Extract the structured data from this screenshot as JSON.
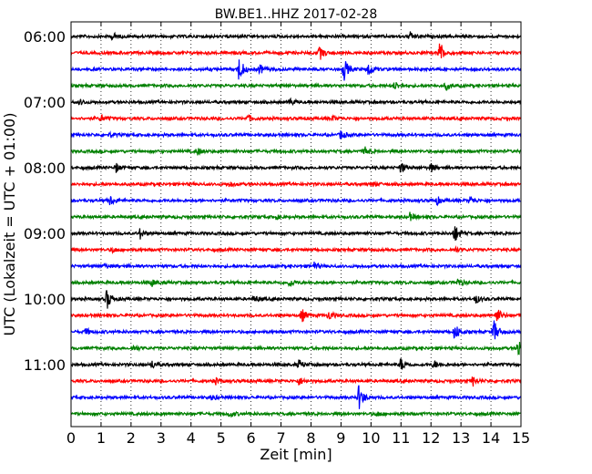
{
  "chart_data": {
    "type": "line",
    "title": "BW.BE1..HHZ 2017-02-28",
    "xlabel": "Zeit  [min]",
    "ylabel": "UTC (Lokalzeit = UTC + 01:00)",
    "xlim": [
      0,
      15
    ],
    "x_ticks": [
      "0",
      "1",
      "2",
      "3",
      "4",
      "5",
      "6",
      "7",
      "8",
      "9",
      "10",
      "11",
      "12",
      "13",
      "14",
      "15"
    ],
    "y_tick_labels": [
      "06:00",
      "07:00",
      "08:00",
      "09:00",
      "10:00",
      "11:00"
    ],
    "grid": "vertical dotted",
    "trace_minutes": 15,
    "color_cycle": [
      "#000000",
      "#ff0000",
      "#0000ff",
      "#008000"
    ],
    "series": [
      {
        "start": "06:00",
        "events": [
          [
            1.4,
            0.25
          ],
          [
            11.3,
            0.3
          ]
        ]
      },
      {
        "start": "06:15",
        "events": [
          [
            8.3,
            0.5
          ],
          [
            12.3,
            0.9
          ]
        ]
      },
      {
        "start": "06:30",
        "events": [
          [
            5.6,
            1.0
          ],
          [
            6.3,
            0.35
          ],
          [
            9.1,
            0.9
          ],
          [
            9.9,
            0.6
          ]
        ]
      },
      {
        "start": "06:45",
        "events": [
          [
            10.8,
            0.3
          ],
          [
            12.5,
            0.3
          ]
        ]
      },
      {
        "start": "07:00",
        "events": [
          [
            0.3,
            0.2
          ],
          [
            7.3,
            0.25
          ]
        ]
      },
      {
        "start": "07:15",
        "events": [
          [
            1.0,
            0.25
          ],
          [
            5.9,
            0.25
          ],
          [
            8.7,
            0.2
          ]
        ]
      },
      {
        "start": "07:30",
        "events": [
          [
            1.3,
            0.15
          ],
          [
            9.0,
            0.35
          ]
        ]
      },
      {
        "start": "07:45",
        "events": [
          [
            4.2,
            0.3
          ],
          [
            9.8,
            0.3
          ]
        ]
      },
      {
        "start": "08:00",
        "events": [
          [
            1.5,
            0.35
          ],
          [
            11.0,
            0.4
          ],
          [
            12.0,
            0.3
          ]
        ]
      },
      {
        "start": "08:15",
        "events": [
          [
            5.3,
            0.2
          ],
          [
            10.1,
            0.2
          ]
        ]
      },
      {
        "start": "08:30",
        "events": [
          [
            1.3,
            0.4
          ],
          [
            12.2,
            0.3
          ],
          [
            13.3,
            0.3
          ]
        ]
      },
      {
        "start": "08:45",
        "events": [
          [
            6.8,
            0.2
          ],
          [
            11.3,
            0.3
          ]
        ]
      },
      {
        "start": "09:00",
        "events": [
          [
            2.3,
            0.4
          ],
          [
            12.8,
            0.7
          ]
        ]
      },
      {
        "start": "09:15",
        "events": [
          [
            1.4,
            0.2
          ],
          [
            12.8,
            0.2
          ]
        ]
      },
      {
        "start": "09:30",
        "events": [
          [
            1.1,
            0.2
          ],
          [
            8.1,
            0.3
          ]
        ]
      },
      {
        "start": "09:45",
        "events": [
          [
            2.7,
            0.25
          ],
          [
            7.3,
            0.35
          ],
          [
            12.9,
            0.3
          ]
        ]
      },
      {
        "start": "10:00",
        "events": [
          [
            1.2,
            0.8
          ],
          [
            6.1,
            0.25
          ],
          [
            13.5,
            0.3
          ]
        ]
      },
      {
        "start": "10:15",
        "events": [
          [
            7.7,
            0.5
          ],
          [
            8.6,
            0.35
          ],
          [
            14.2,
            0.6
          ]
        ]
      },
      {
        "start": "10:30",
        "events": [
          [
            0.5,
            0.25
          ],
          [
            12.8,
            0.7
          ],
          [
            14.1,
            0.9
          ]
        ]
      },
      {
        "start": "10:45",
        "events": [
          [
            2.1,
            0.2
          ],
          [
            14.9,
            0.8
          ]
        ]
      },
      {
        "start": "11:00",
        "events": [
          [
            2.7,
            0.3
          ],
          [
            7.6,
            0.35
          ],
          [
            11.0,
            0.5
          ],
          [
            12.1,
            0.3
          ]
        ]
      },
      {
        "start": "11:15",
        "events": [
          [
            4.8,
            0.25
          ],
          [
            7.6,
            0.3
          ],
          [
            13.4,
            0.4
          ]
        ]
      },
      {
        "start": "11:30",
        "events": [
          [
            4.7,
            0.2
          ],
          [
            9.6,
            1.0
          ]
        ]
      },
      {
        "start": "11:45",
        "events": [
          [
            5.3,
            0.25
          ],
          [
            10.2,
            0.2
          ]
        ]
      }
    ]
  }
}
